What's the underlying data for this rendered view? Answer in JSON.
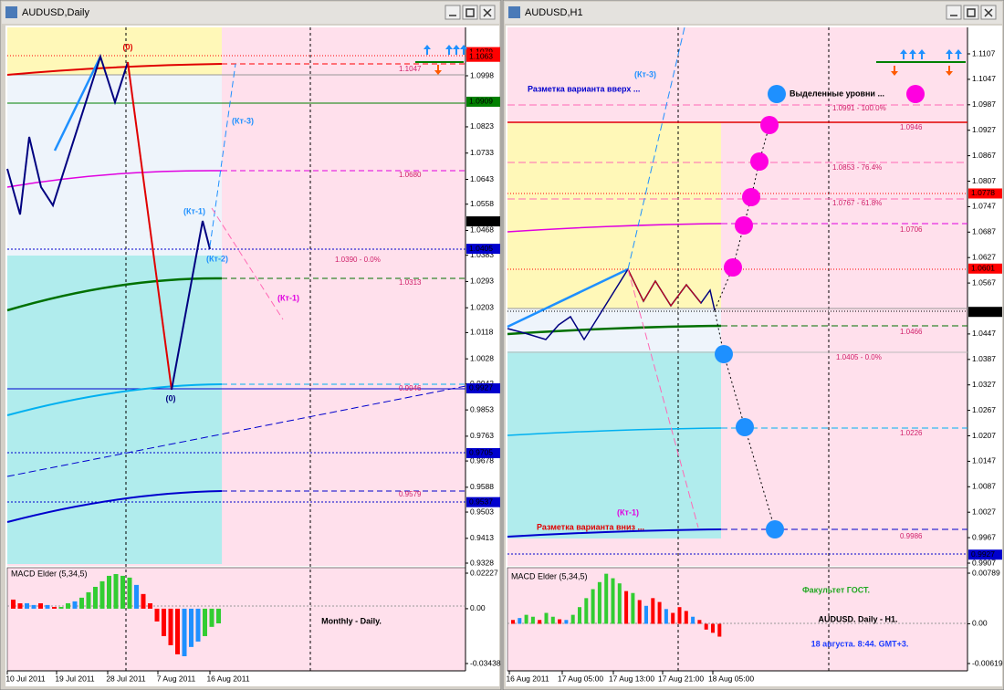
{
  "windows": [
    {
      "title": "AUDUSD,Daily",
      "price_ticks": [
        1.0998,
        1.0823,
        1.0733,
        1.0643,
        1.0558,
        1.0468,
        1.0383,
        1.0293,
        1.0203,
        1.0118,
        1.0028,
        0.9942,
        0.9853,
        0.9763,
        0.9678,
        0.9588,
        0.9503,
        0.9413,
        0.9328
      ],
      "price_tags": [
        {
          "value": 1.1079,
          "color": "#ff0000"
        },
        {
          "value": 1.1063,
          "color": "#ff0000"
        },
        {
          "value": 1.0909,
          "color": "#008000"
        },
        {
          "value": 1.0499,
          "color": "#000000"
        },
        {
          "value": 1.0405,
          "color": "#0000cd"
        },
        {
          "value": 0.9927,
          "color": "#0000cd"
        },
        {
          "value": 0.9705,
          "color": "#0000cd"
        },
        {
          "value": 0.9537,
          "color": "#0000cd"
        }
      ],
      "level_labels": [
        "1.1047",
        "1.0680",
        "1.0390 - 0.0%",
        "1.0313",
        "0.9946",
        "0.9579"
      ],
      "annotations": [
        "(0)",
        "(0)",
        "(Кт-3)",
        "(Кт-1)",
        "(Кт-2)",
        "(Кт-1)"
      ],
      "captions": [
        "Monthly - Daily."
      ],
      "dates": [
        "10 Jul 2011",
        "19 Jul 2011",
        "28 Jul 2011",
        "7 Aug 2011",
        "16 Aug 2011"
      ],
      "indicator": {
        "name": "MACD Elder (5,34,5)",
        "ticks": [
          0.02227,
          {
            "value": 0,
            "label": "0.00"
          },
          -0.03438
        ],
        "values": [
          0.0057,
          0.0034,
          0.0034,
          0.0023,
          0.0034,
          0.0023,
          0.0011,
          0.0011,
          0.0034,
          0.0046,
          0.0069,
          0.0103,
          0.0137,
          0.0172,
          0.0206,
          0.0217,
          0.0206,
          0.0195,
          0.0149,
          0.0092,
          0.0034,
          -0.008,
          -0.0172,
          -0.0229,
          -0.0286,
          -0.0298,
          -0.024,
          -0.0206,
          -0.0172,
          -0.0114,
          -0.0092
        ],
        "colors": [
          "#ff0000",
          "#ff0000",
          "#1e90ff",
          "#1e90ff",
          "#ff0000",
          "#1e90ff",
          "#ff0000",
          "#32cd32",
          "#32cd32",
          "#1e90ff",
          "#32cd32",
          "#32cd32",
          "#32cd32",
          "#32cd32",
          "#32cd32",
          "#32cd32",
          "#32cd32",
          "#32cd32",
          "#1e90ff",
          "#ff0000",
          "#ff0000",
          "#ff0000",
          "#ff0000",
          "#ff0000",
          "#ff0000",
          "#1e90ff",
          "#1e90ff",
          "#1e90ff",
          "#32cd32",
          "#32cd32",
          "#32cd32"
        ]
      }
    },
    {
      "title": "AUDUSD,H1",
      "price_ticks": [
        1.1107,
        1.1047,
        1.0987,
        1.0927,
        1.0867,
        1.0807,
        1.0747,
        1.0687,
        1.0627,
        1.0567,
        1.0447,
        1.0387,
        1.0327,
        1.0267,
        1.0207,
        1.0147,
        1.0087,
        1.0027,
        0.9967,
        0.9907
      ],
      "price_tags": [
        {
          "value": 1.0778,
          "color": "#ff0000"
        },
        {
          "value": 1.0601,
          "color": "#ff0000"
        },
        {
          "value": 1.0499,
          "color": "#000000"
        },
        {
          "value": 0.9927,
          "color": "#0000cd"
        }
      ],
      "level_labels": [
        "1.0991 - 100.0%",
        "1.0946",
        "1.0853 - 76.4%",
        "1.0767 - 61.8%",
        "1.0706",
        "1.0466",
        "1.0405 - 0.0%",
        "1.0226",
        "0.9986"
      ],
      "annotations": [
        "(Кт-3)",
        "Разметка варианта вверх ...",
        "Выделенные уровни ...",
        "(Кт-1)",
        "Разметка варианта вниз ..."
      ],
      "captions": [
        "Факультет ГОСТ.",
        "AUDUSD. Daily - H1.",
        "18 августа. 8:44. GMT+3."
      ],
      "dates": [
        "16 Aug 2011",
        "17 Aug 05:00",
        "17 Aug 13:00",
        "17 Aug 21:00",
        "18 Aug 05:00"
      ],
      "indicator": {
        "name": "MACD Elder (5,34,5)",
        "ticks": [
          0.00789,
          {
            "value": 0,
            "label": "0.00"
          },
          -0.00619
        ],
        "values": [
          0.0006,
          0.0009,
          0.0014,
          0.0011,
          0.0006,
          0.0017,
          0.0011,
          0.0007,
          0.0006,
          0.0014,
          0.0026,
          0.004,
          0.0054,
          0.0065,
          0.0078,
          0.0071,
          0.0063,
          0.0051,
          0.0048,
          0.0037,
          0.0028,
          0.004,
          0.0034,
          0.0023,
          0.0017,
          0.0026,
          0.002,
          0.0011,
          0.0006,
          -0.0009,
          -0.0014,
          -0.002
        ],
        "colors": [
          "#ff0000",
          "#1e90ff",
          "#32cd32",
          "#32cd32",
          "#ff0000",
          "#32cd32",
          "#32cd32",
          "#ff0000",
          "#1e90ff",
          "#32cd32",
          "#32cd32",
          "#32cd32",
          "#32cd32",
          "#32cd32",
          "#32cd32",
          "#32cd32",
          "#32cd32",
          "#ff0000",
          "#32cd32",
          "#ff0000",
          "#1e90ff",
          "#ff0000",
          "#ff0000",
          "#1e90ff",
          "#ff0000",
          "#ff0000",
          "#ff0000",
          "#1e90ff",
          "#ff0000",
          "#ff0000",
          "#ff0000",
          "#ff0000"
        ]
      }
    }
  ]
}
